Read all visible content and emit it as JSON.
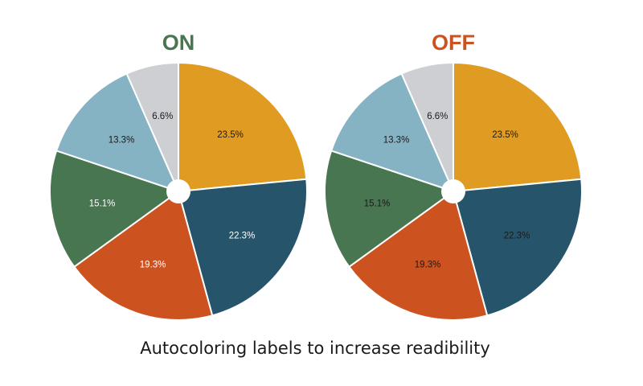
{
  "caption": "Autocoloring labels to increase readibility",
  "colors": {
    "slices": [
      "#e09b22",
      "#26546b",
      "#cc5320",
      "#477650",
      "#85b3c4",
      "#cdcfd2"
    ],
    "title_on": "#477650",
    "title_off": "#cc5320",
    "label_dark": "#1a1a1a",
    "label_light": "#ffffff"
  },
  "chart_data": [
    {
      "type": "pie",
      "title": "ON",
      "autocolor_labels": true,
      "values": [
        23.5,
        22.3,
        19.3,
        15.1,
        13.3,
        6.6
      ],
      "labels": [
        "23.5%",
        "22.3%",
        "19.3%",
        "15.1%",
        "13.3%",
        "6.6%"
      ]
    },
    {
      "type": "pie",
      "title": "OFF",
      "autocolor_labels": false,
      "values": [
        23.5,
        22.3,
        19.3,
        15.1,
        13.3,
        6.6
      ],
      "labels": [
        "23.5%",
        "22.3%",
        "19.3%",
        "15.1%",
        "13.3%",
        "6.6%"
      ]
    }
  ]
}
